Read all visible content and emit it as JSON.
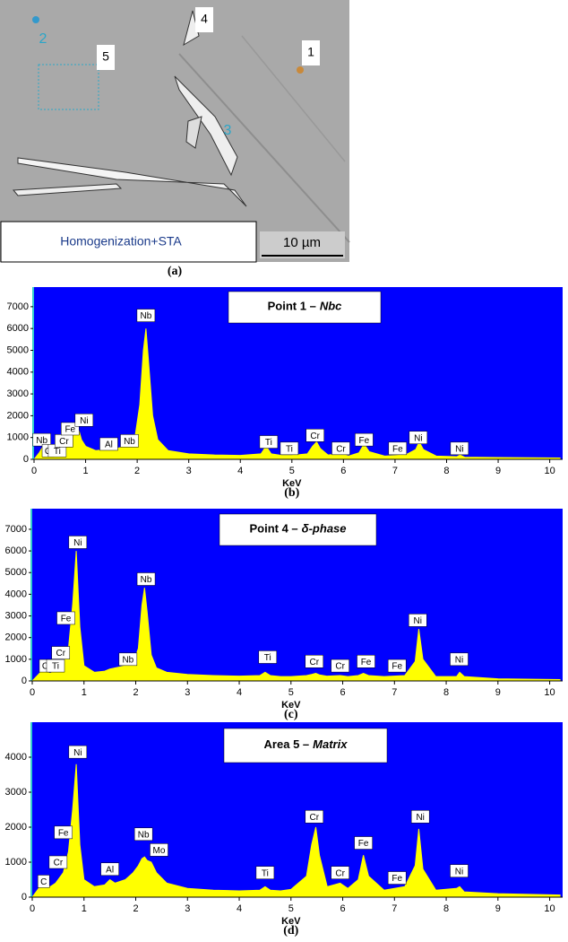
{
  "micrograph": {
    "points": [
      "1",
      "2",
      "3",
      "4",
      "5"
    ],
    "caption": "Homogenization+STA",
    "scale": "10 µm",
    "panel": "(a)"
  },
  "chart_data": [
    {
      "type": "area",
      "title": "Point 1 –",
      "title_italic": "Nbc",
      "x_label": "KeV",
      "panel": "(b)",
      "color": "#ffff00",
      "background": "#0000ff",
      "x": [
        0,
        0.1,
        0.2,
        0.28,
        0.35,
        0.45,
        0.5,
        0.6,
        0.7,
        0.78,
        0.85,
        0.92,
        1.0,
        1.2,
        1.4,
        1.5,
        1.6,
        1.8,
        1.95,
        2.05,
        2.12,
        2.17,
        2.22,
        2.3,
        2.4,
        2.6,
        3.0,
        3.5,
        4.0,
        4.4,
        4.5,
        4.6,
        4.8,
        5.0,
        5.3,
        5.4,
        5.48,
        5.55,
        5.7,
        5.95,
        6.1,
        6.3,
        6.4,
        6.5,
        6.8,
        7.2,
        7.4,
        7.47,
        7.55,
        7.8,
        8.2,
        8.26,
        8.35,
        9,
        10.2
      ],
      "values": [
        0,
        300,
        700,
        500,
        400,
        500,
        600,
        700,
        900,
        1300,
        1500,
        900,
        600,
        400,
        450,
        600,
        500,
        600,
        900,
        2500,
        5000,
        6000,
        4500,
        2000,
        900,
        400,
        250,
        200,
        180,
        250,
        600,
        250,
        180,
        180,
        250,
        600,
        800,
        500,
        200,
        250,
        150,
        300,
        700,
        350,
        150,
        200,
        450,
        800,
        450,
        150,
        120,
        200,
        100,
        80,
        60
      ],
      "xlim": [
        0,
        10.25
      ],
      "ylim": [
        0,
        7900
      ],
      "xticks": [
        0,
        1,
        2,
        3,
        4,
        5,
        6,
        7,
        8,
        9,
        10
      ],
      "yticks": [
        0,
        1000,
        2000,
        3000,
        4000,
        5000,
        6000,
        7000
      ],
      "annotations": [
        {
          "text": "Nb",
          "x": 0.15,
          "y": 900
        },
        {
          "text": "C",
          "x": 0.27,
          "y": 400
        },
        {
          "text": "Ti",
          "x": 0.45,
          "y": 400
        },
        {
          "text": "Cr",
          "x": 0.58,
          "y": 850
        },
        {
          "text": "Fe",
          "x": 0.7,
          "y": 1400
        },
        {
          "text": "Ni",
          "x": 0.97,
          "y": 1800
        },
        {
          "text": "Al",
          "x": 1.45,
          "y": 700
        },
        {
          "text": "Nb",
          "x": 1.85,
          "y": 850
        },
        {
          "text": "Nb",
          "x": 2.17,
          "y": 6600
        },
        {
          "text": "Ti",
          "x": 4.55,
          "y": 800
        },
        {
          "text": "Ti",
          "x": 4.95,
          "y": 500
        },
        {
          "text": "Cr",
          "x": 5.45,
          "y": 1100
        },
        {
          "text": "Cr",
          "x": 5.95,
          "y": 500
        },
        {
          "text": "Fe",
          "x": 6.4,
          "y": 900
        },
        {
          "text": "Fe",
          "x": 7.05,
          "y": 500
        },
        {
          "text": "Ni",
          "x": 7.45,
          "y": 1000
        },
        {
          "text": "Ni",
          "x": 8.25,
          "y": 500
        }
      ]
    },
    {
      "type": "area",
      "title": "Point 4 –",
      "title_italic": "δ-phase",
      "x_label": "KeV",
      "panel": "(c)",
      "color": "#ffff00",
      "background": "#0000ff",
      "x": [
        0,
        0.1,
        0.2,
        0.28,
        0.35,
        0.45,
        0.5,
        0.6,
        0.7,
        0.78,
        0.85,
        0.92,
        1.0,
        1.2,
        1.4,
        1.5,
        1.6,
        1.8,
        1.95,
        2.05,
        2.12,
        2.17,
        2.22,
        2.3,
        2.4,
        2.6,
        3.0,
        3.5,
        4.0,
        4.4,
        4.5,
        4.6,
        4.8,
        5.0,
        5.3,
        5.4,
        5.48,
        5.55,
        5.7,
        5.95,
        6.1,
        6.3,
        6.4,
        6.5,
        6.8,
        7.2,
        7.4,
        7.47,
        7.55,
        7.8,
        8.2,
        8.26,
        8.35,
        9,
        10.2
      ],
      "values": [
        0,
        250,
        500,
        400,
        350,
        500,
        600,
        900,
        1500,
        3500,
        6000,
        2500,
        700,
        400,
        450,
        550,
        600,
        700,
        800,
        1500,
        3500,
        4300,
        3200,
        1200,
        600,
        400,
        300,
        250,
        220,
        250,
        400,
        250,
        200,
        200,
        250,
        300,
        350,
        280,
        220,
        250,
        200,
        250,
        350,
        250,
        200,
        250,
        900,
        2400,
        1000,
        200,
        200,
        400,
        200,
        100,
        60
      ],
      "xlim": [
        0,
        10.25
      ],
      "ylim": [
        0,
        7950
      ],
      "xticks": [
        0,
        1,
        2,
        3,
        4,
        5,
        6,
        7,
        8,
        9,
        10
      ],
      "yticks": [
        0,
        1000,
        2000,
        3000,
        4000,
        5000,
        6000,
        7000
      ],
      "annotations": [
        {
          "text": "C",
          "x": 0.25,
          "y": 700
        },
        {
          "text": "Ti",
          "x": 0.45,
          "y": 700
        },
        {
          "text": "Cr",
          "x": 0.55,
          "y": 1300
        },
        {
          "text": "Fe",
          "x": 0.65,
          "y": 2900
        },
        {
          "text": "Ni",
          "x": 0.88,
          "y": 6400
        },
        {
          "text": "Nb",
          "x": 1.85,
          "y": 1000
        },
        {
          "text": "Nb",
          "x": 2.2,
          "y": 4700
        },
        {
          "text": "Ti",
          "x": 4.55,
          "y": 1100
        },
        {
          "text": "Cr",
          "x": 5.45,
          "y": 900
        },
        {
          "text": "Cr",
          "x": 5.95,
          "y": 700
        },
        {
          "text": "Fe",
          "x": 6.45,
          "y": 900
        },
        {
          "text": "Fe",
          "x": 7.05,
          "y": 700
        },
        {
          "text": "Ni",
          "x": 7.45,
          "y": 2800
        },
        {
          "text": "Ni",
          "x": 8.25,
          "y": 1000
        }
      ]
    },
    {
      "type": "area",
      "title": "Area 5 –",
      "title_italic": "Matrix",
      "x_label": "KeV",
      "panel": "(d)",
      "color": "#ffff00",
      "background": "#0000ff",
      "x": [
        0,
        0.1,
        0.2,
        0.28,
        0.35,
        0.45,
        0.5,
        0.6,
        0.7,
        0.78,
        0.85,
        0.92,
        1.0,
        1.2,
        1.4,
        1.5,
        1.6,
        1.8,
        1.95,
        2.05,
        2.12,
        2.17,
        2.22,
        2.3,
        2.4,
        2.6,
        3.0,
        3.5,
        4.0,
        4.4,
        4.5,
        4.6,
        4.8,
        5.0,
        5.3,
        5.4,
        5.48,
        5.55,
        5.7,
        5.95,
        6.1,
        6.3,
        6.4,
        6.5,
        6.8,
        7.2,
        7.4,
        7.47,
        7.55,
        7.8,
        8.2,
        8.26,
        8.35,
        9,
        10.2
      ],
      "values": [
        0,
        200,
        400,
        350,
        300,
        400,
        500,
        700,
        1300,
        2500,
        3800,
        1500,
        500,
        300,
        350,
        500,
        400,
        500,
        700,
        900,
        1100,
        1150,
        1050,
        1000,
        700,
        400,
        250,
        200,
        180,
        200,
        300,
        200,
        180,
        220,
        600,
        1500,
        2000,
        1200,
        300,
        400,
        250,
        500,
        1200,
        600,
        200,
        300,
        900,
        1950,
        800,
        200,
        250,
        300,
        150,
        100,
        60
      ],
      "xlim": [
        0,
        10.25
      ],
      "ylim": [
        0,
        5000
      ],
      "xticks": [
        0,
        1,
        2,
        3,
        4,
        5,
        6,
        7,
        8,
        9,
        10
      ],
      "yticks": [
        0,
        1000,
        2000,
        3000,
        4000
      ],
      "annotations": [
        {
          "text": "C",
          "x": 0.22,
          "y": 450
        },
        {
          "text": "Cr",
          "x": 0.5,
          "y": 1000
        },
        {
          "text": "Fe",
          "x": 0.6,
          "y": 1850
        },
        {
          "text": "Ni",
          "x": 0.88,
          "y": 4150
        },
        {
          "text": "Al",
          "x": 1.5,
          "y": 800
        },
        {
          "text": "Nb",
          "x": 2.15,
          "y": 1800
        },
        {
          "text": "Mo",
          "x": 2.45,
          "y": 1350
        },
        {
          "text": "Ti",
          "x": 4.5,
          "y": 700
        },
        {
          "text": "Cr",
          "x": 5.45,
          "y": 2300
        },
        {
          "text": "Cr",
          "x": 5.95,
          "y": 700
        },
        {
          "text": "Fe",
          "x": 6.4,
          "y": 1550
        },
        {
          "text": "Fe",
          "x": 7.05,
          "y": 550
        },
        {
          "text": "Ni",
          "x": 7.5,
          "y": 2300
        },
        {
          "text": "Ni",
          "x": 8.25,
          "y": 750
        }
      ]
    }
  ]
}
